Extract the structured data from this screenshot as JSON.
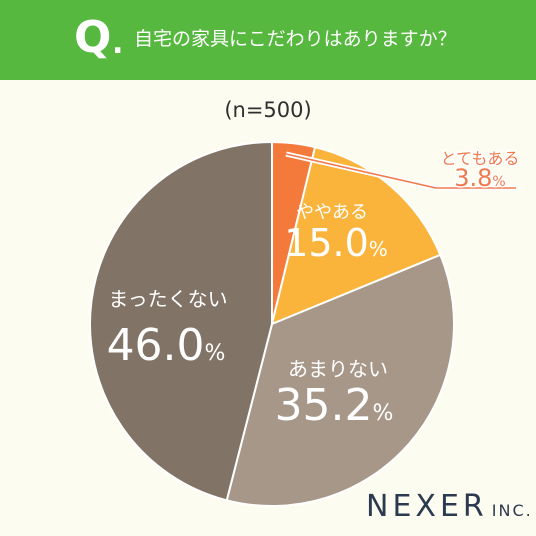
{
  "header": {
    "q_mark": "Q",
    "q_dot": ".",
    "question": "自宅の家具にこだわりはありますか？",
    "color": "#56b83f"
  },
  "sample_size": "(n=500)",
  "logo": {
    "name": "NEXER",
    "suffix": "INC."
  },
  "chart_data": {
    "type": "pie",
    "start": "12 o'clock, clockwise",
    "slices": [
      {
        "label": "とてもある",
        "value": 3.8,
        "display": "3.8",
        "unit": "%",
        "color": "#f47a3c",
        "label_color": "#ef7a4e",
        "callout": true
      },
      {
        "label": "ややある",
        "value": 15.0,
        "display": "15.0",
        "unit": "%",
        "color": "#fab43c",
        "label_color": "#ffffff",
        "callout": false
      },
      {
        "label": "あまりない",
        "value": 35.2,
        "display": "35.2",
        "unit": "%",
        "color": "#a79789",
        "label_color": "#ffffff",
        "callout": false
      },
      {
        "label": "まったくない",
        "value": 46.0,
        "display": "46.0",
        "unit": "%",
        "color": "#817467",
        "label_color": "#ffffff",
        "callout": false
      }
    ]
  }
}
